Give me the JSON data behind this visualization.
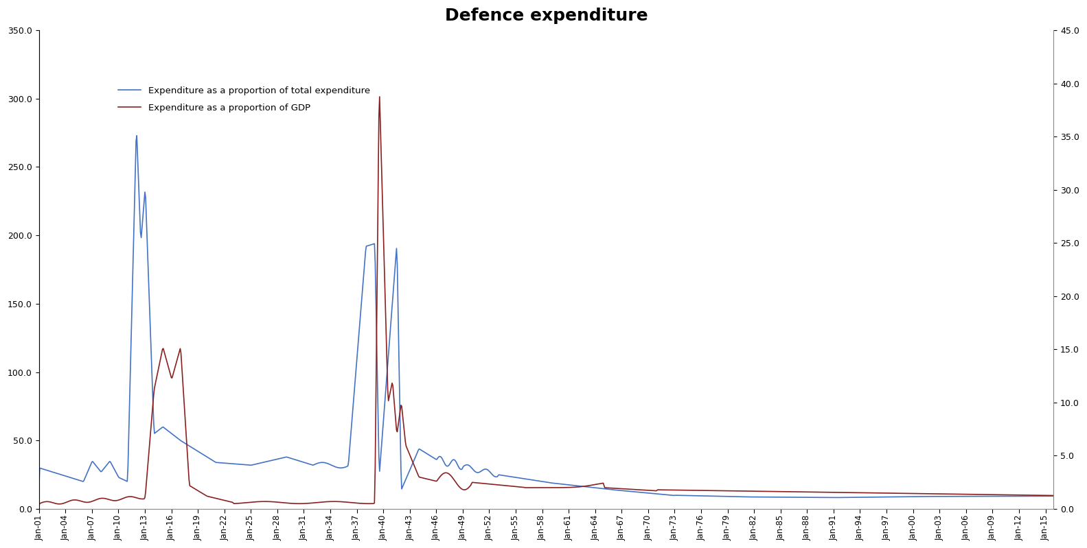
{
  "title": "Defence expenditure",
  "title_fontsize": 18,
  "title_fontweight": "bold",
  "line1_label": "Expenditure as a proportion of total expenditure",
  "line2_label": "Expenditure as a proportion of GDP",
  "line1_color": "#4472C4",
  "line2_color": "#8B2020",
  "ylim_left": [
    0.0,
    350.0
  ],
  "ylim_right": [
    0.0,
    45.0
  ],
  "yticks_left": [
    0.0,
    50.0,
    100.0,
    150.0,
    200.0,
    250.0,
    300.0,
    350.0
  ],
  "yticks_right": [
    0.0,
    5.0,
    10.0,
    15.0,
    20.0,
    25.0,
    30.0,
    35.0,
    40.0,
    45.0
  ],
  "xtick_labels": [
    "Jan-01",
    "Jan-04",
    "Jan-07",
    "Jan-10",
    "Jan-13",
    "Jan-16",
    "Jan-19",
    "Jan-22",
    "Jan-25",
    "Jan-28",
    "Jan-31",
    "Jan-34",
    "Jan-37",
    "Jan-40",
    "Jan-43",
    "Jan-46",
    "Jan-49",
    "Jan-52",
    "Jan-55",
    "Jan-58",
    "Jan-61",
    "Jan-64",
    "Jan-67",
    "Jan-70",
    "Jan-73",
    "Jan-76",
    "Jan-79",
    "Jan-82",
    "Jan-85",
    "Jan-88",
    "Jan-91",
    "Jan-94",
    "Jan-97",
    "Jan-00",
    "Jan-03",
    "Jan-06",
    "Jan-09",
    "Jan-12",
    "Jan-15"
  ],
  "n_points": 1380,
  "background_color": "#ffffff"
}
